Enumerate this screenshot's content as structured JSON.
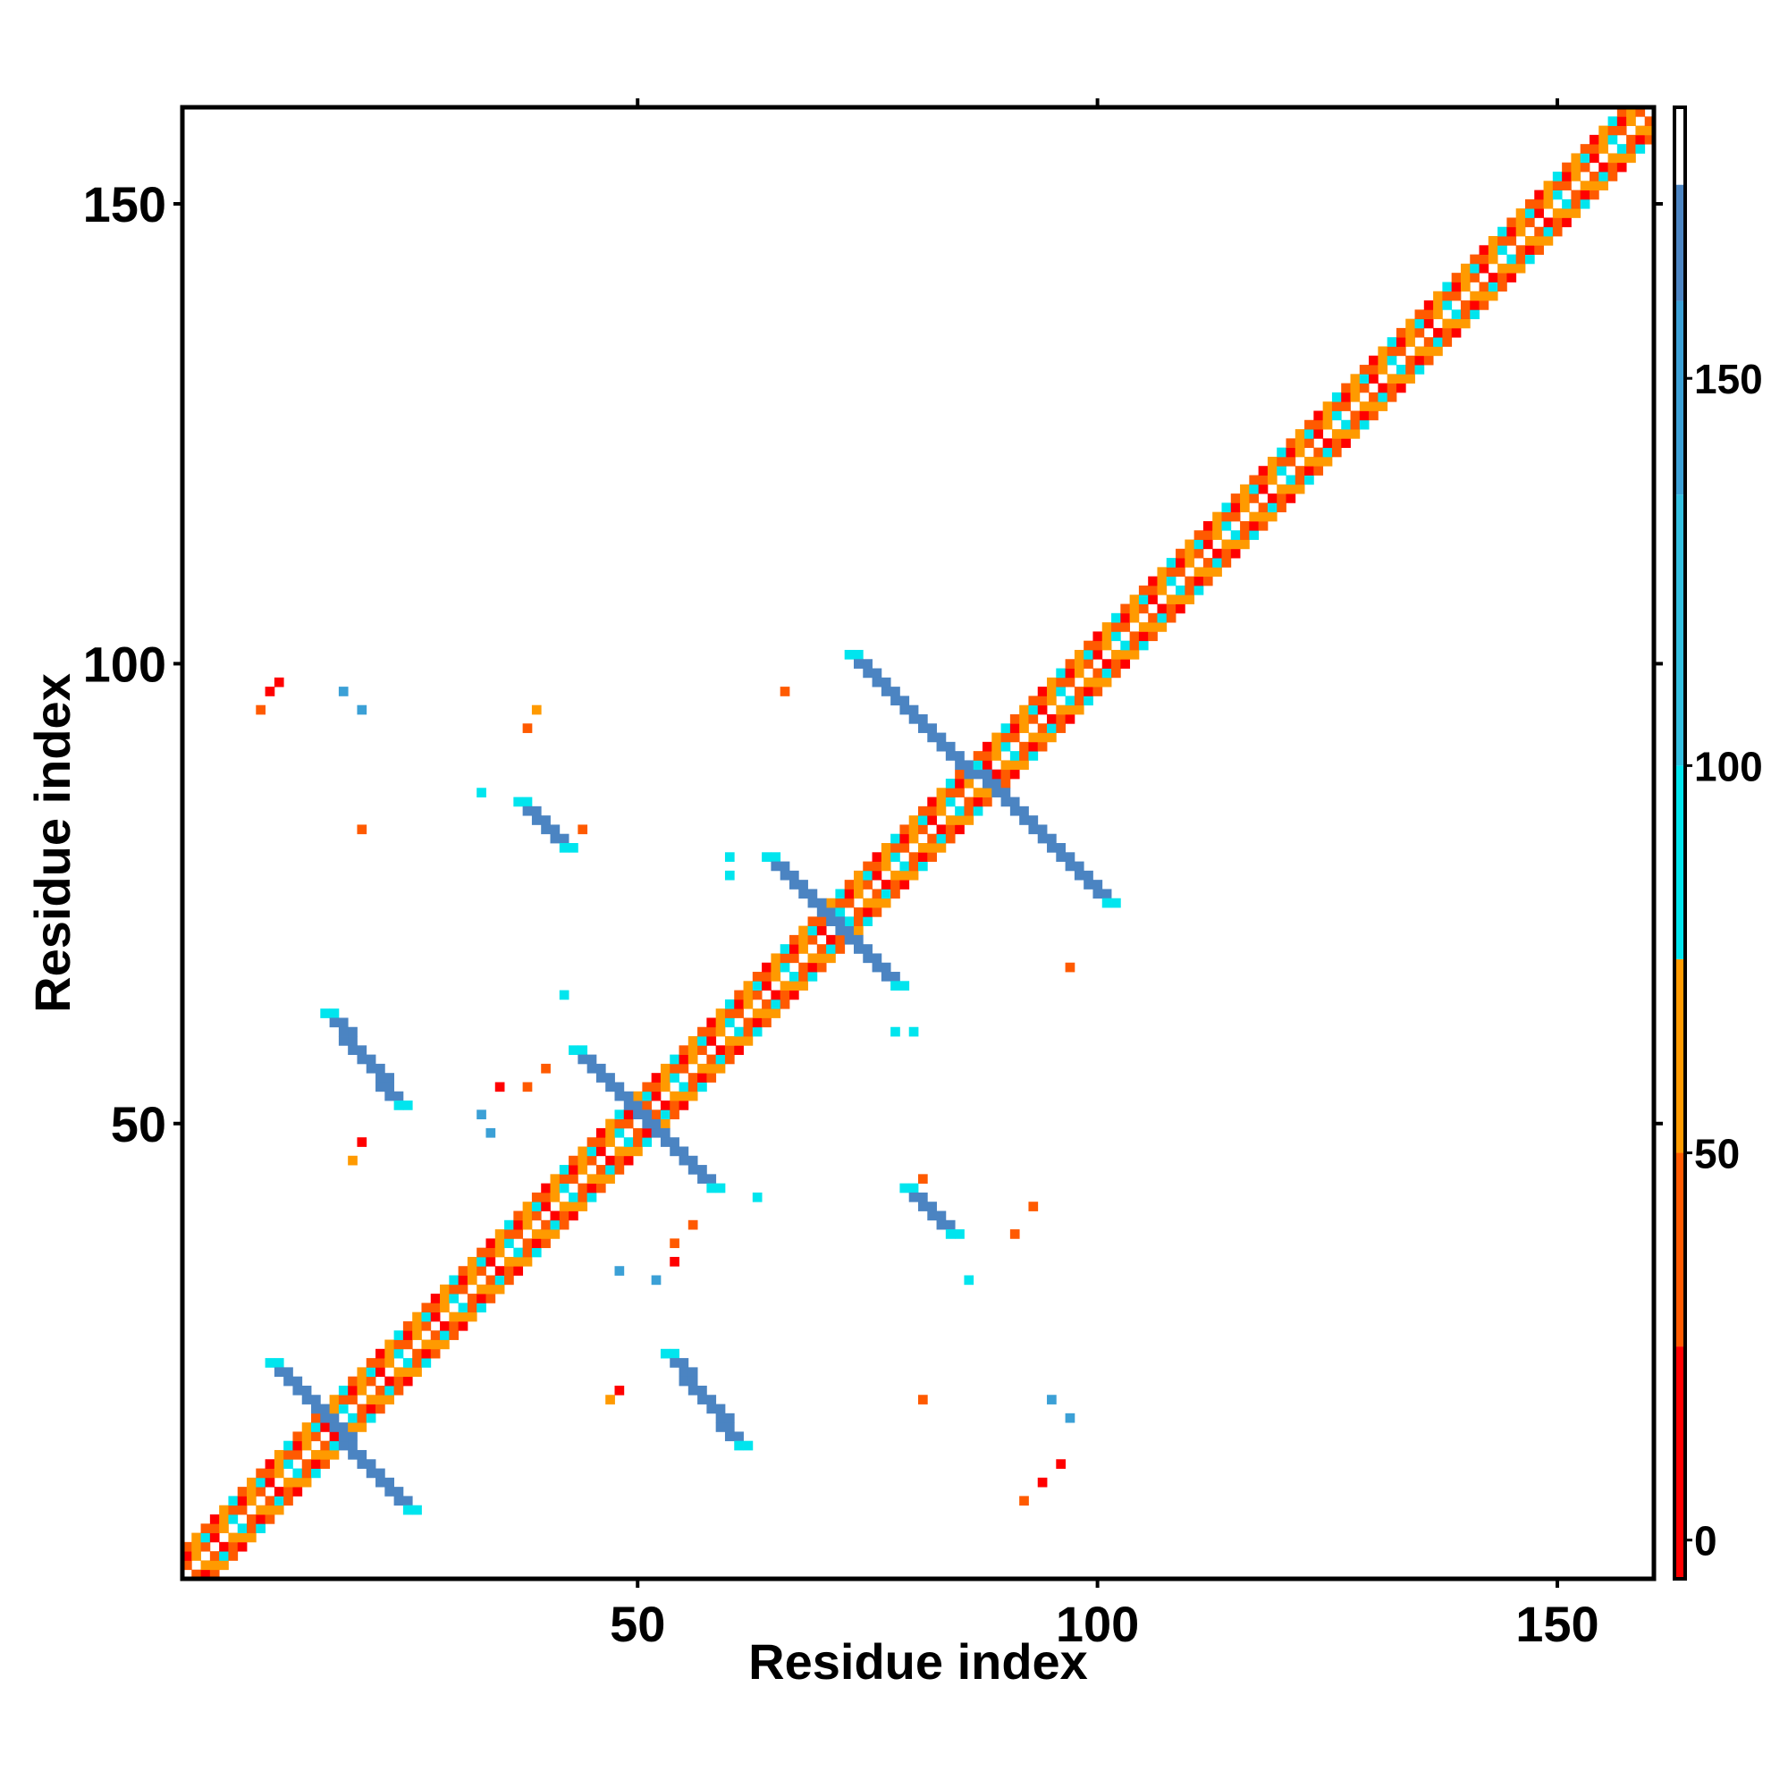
{
  "chart_data": {
    "type": "heatmap",
    "title": "",
    "xlabel": "Residue index",
    "ylabel": "Residue index",
    "xlim": [
      1,
      160
    ],
    "ylim": [
      1,
      160
    ],
    "x_ticks": [
      50,
      100,
      150
    ],
    "y_ticks": [
      50,
      100,
      150
    ],
    "grid": false,
    "legend": "right (colorbar)",
    "colorbar": {
      "range": [
        -5,
        185
      ],
      "ticks": [
        0,
        50,
        100,
        150
      ],
      "bands": [
        {
          "from": -5,
          "to": 25,
          "color": "#ff0000"
        },
        {
          "from": 25,
          "to": 50,
          "color": "#ff5a00"
        },
        {
          "from": 50,
          "to": 75,
          "color": "#ff9a00"
        },
        {
          "from": 75,
          "to": 100,
          "color": "#00e5ee"
        },
        {
          "from": 100,
          "to": 135,
          "color": "#33bfe0"
        },
        {
          "from": 135,
          "to": 160,
          "color": "#3ba0d6"
        },
        {
          "from": 160,
          "to": 175,
          "color": "#4b84c2"
        },
        {
          "from": 175,
          "to": 185,
          "color": "#ffffff"
        }
      ]
    },
    "patterns": {
      "diagonal_band": {
        "from": 1,
        "to": 160,
        "color_cycle": [
          "#ff5a00",
          "#ff0000",
          "#ff9a00",
          "#00e5ee",
          "#ff5a00",
          "#ff9a00"
        ]
      },
      "antiparallel_segments": [
        {
          "from": [
            10,
            24
          ],
          "to": [
            25,
            8
          ],
          "color": "#4b84c2"
        },
        {
          "from": [
            53,
            25
          ],
          "to": [
            61,
            15
          ],
          "color": "#4b84c2"
        },
        {
          "from": [
            16,
            62
          ],
          "to": [
            24,
            52
          ],
          "color": "#4b84c2"
        },
        {
          "from": [
            43,
            58
          ],
          "to": [
            58,
            43
          ],
          "color": "#4b84c2"
        },
        {
          "from": [
            37,
            85
          ],
          "to": [
            42,
            80
          ],
          "color": "#4b84c2"
        },
        {
          "from": [
            64,
            79
          ],
          "to": [
            78,
            65
          ],
          "color": "#4b84c2"
        },
        {
          "from": [
            73,
            101
          ],
          "to": [
            101,
            74
          ],
          "color": "#4b84c2"
        },
        {
          "from": [
            79,
            43
          ],
          "to": [
            84,
            38
          ],
          "color": "#4b84c2"
        }
      ],
      "sparse_contacts": [
        {
          "x": 10,
          "y": 97,
          "color": "#ff0000"
        },
        {
          "x": 11,
          "y": 98,
          "color": "#ff0000"
        },
        {
          "x": 9,
          "y": 95,
          "color": "#ff5a00"
        },
        {
          "x": 18,
          "y": 97,
          "color": "#3ba0d6"
        },
        {
          "x": 20,
          "y": 95,
          "color": "#3ba0d6"
        },
        {
          "x": 39,
          "y": 95,
          "color": "#ff9a00"
        },
        {
          "x": 38,
          "y": 93,
          "color": "#ff5a00"
        },
        {
          "x": 66,
          "y": 97,
          "color": "#ff5a00"
        },
        {
          "x": 33,
          "y": 86,
          "color": "#00e5ee"
        },
        {
          "x": 20,
          "y": 82,
          "color": "#ff5a00"
        },
        {
          "x": 44,
          "y": 82,
          "color": "#ff5a00"
        },
        {
          "x": 60,
          "y": 79,
          "color": "#00e5ee"
        },
        {
          "x": 60,
          "y": 77,
          "color": "#00e5ee"
        },
        {
          "x": 42,
          "y": 64,
          "color": "#00e5ee"
        },
        {
          "x": 78,
          "y": 60,
          "color": "#00e5ee"
        },
        {
          "x": 80,
          "y": 60,
          "color": "#00e5ee"
        },
        {
          "x": 97,
          "y": 67,
          "color": "#ff5a00"
        },
        {
          "x": 35,
          "y": 54,
          "color": "#ff0000"
        },
        {
          "x": 38,
          "y": 54,
          "color": "#ff5a00"
        },
        {
          "x": 40,
          "y": 56,
          "color": "#ff5a00"
        },
        {
          "x": 20,
          "y": 48,
          "color": "#ff0000"
        },
        {
          "x": 19,
          "y": 46,
          "color": "#ff9a00"
        },
        {
          "x": 33,
          "y": 51,
          "color": "#3ba0d6"
        },
        {
          "x": 34,
          "y": 49,
          "color": "#3ba0d6"
        },
        {
          "x": 63,
          "y": 42,
          "color": "#00e5ee"
        },
        {
          "x": 81,
          "y": 44,
          "color": "#ff5a00"
        },
        {
          "x": 93,
          "y": 41,
          "color": "#ff5a00"
        },
        {
          "x": 91,
          "y": 38,
          "color": "#ff5a00"
        },
        {
          "x": 56,
          "y": 39,
          "color": "#ff5a00"
        },
        {
          "x": 54,
          "y": 37,
          "color": "#ff5a00"
        },
        {
          "x": 48,
          "y": 34,
          "color": "#3ba0d6"
        },
        {
          "x": 52,
          "y": 33,
          "color": "#3ba0d6"
        },
        {
          "x": 54,
          "y": 35,
          "color": "#ff0000"
        },
        {
          "x": 86,
          "y": 33,
          "color": "#00e5ee"
        },
        {
          "x": 48,
          "y": 21,
          "color": "#ff0000"
        },
        {
          "x": 47,
          "y": 20,
          "color": "#ff9a00"
        },
        {
          "x": 81,
          "y": 20,
          "color": "#ff5a00"
        },
        {
          "x": 95,
          "y": 20,
          "color": "#3ba0d6"
        },
        {
          "x": 97,
          "y": 18,
          "color": "#3ba0d6"
        },
        {
          "x": 96,
          "y": 13,
          "color": "#ff0000"
        },
        {
          "x": 94,
          "y": 11,
          "color": "#ff0000"
        },
        {
          "x": 92,
          "y": 9,
          "color": "#ff5a00"
        }
      ]
    }
  }
}
